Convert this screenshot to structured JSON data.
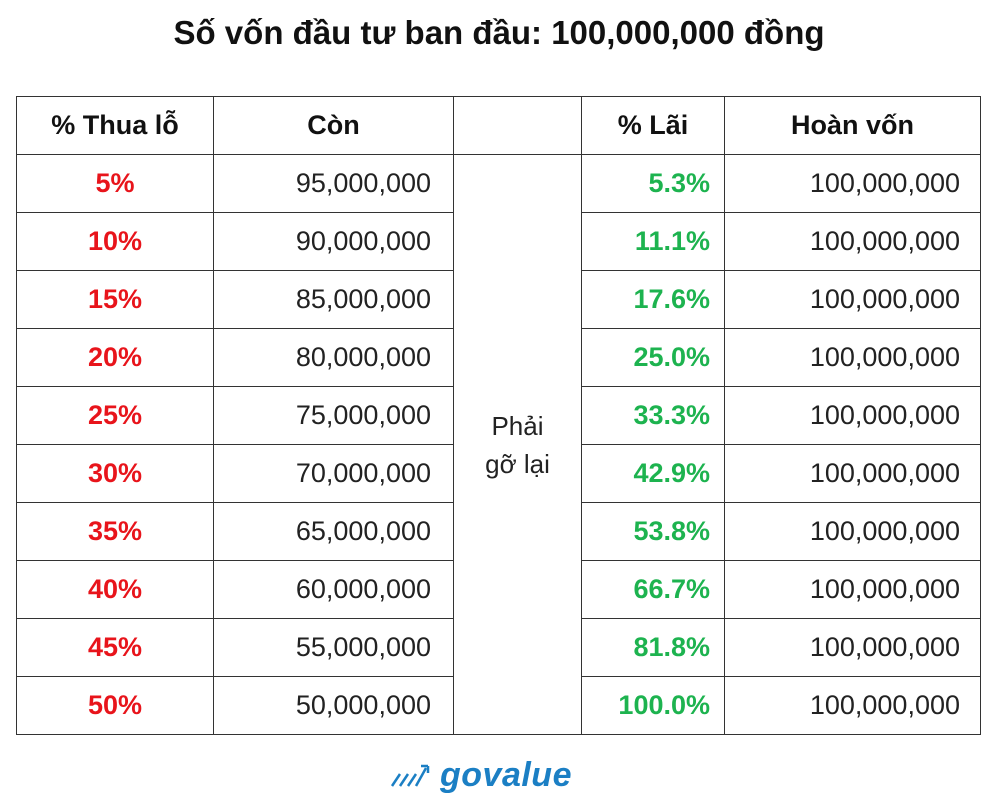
{
  "header": {
    "title": "Số vốn đầu tư ban đầu: 100,000,000 đồng"
  },
  "table": {
    "columns": [
      "% Thua lỗ",
      "Còn",
      "% Lãi",
      "Hoàn vốn"
    ],
    "merged_note": [
      "Phải",
      "gỡ lại"
    ],
    "rows": [
      [
        "5%",
        "95,000,000",
        "5.3%",
        "100,000,000"
      ],
      [
        "10%",
        "90,000,000",
        "11.1%",
        "100,000,000"
      ],
      [
        "15%",
        "85,000,000",
        "17.6%",
        "100,000,000"
      ],
      [
        "20%",
        "80,000,000",
        "25.0%",
        "100,000,000"
      ],
      [
        "25%",
        "75,000,000",
        "33.3%",
        "100,000,000"
      ],
      [
        "30%",
        "70,000,000",
        "42.9%",
        "100,000,000"
      ],
      [
        "35%",
        "65,000,000",
        "53.8%",
        "100,000,000"
      ],
      [
        "40%",
        "60,000,000",
        "66.7%",
        "100,000,000"
      ],
      [
        "45%",
        "55,000,000",
        "81.8%",
        "100,000,000"
      ],
      [
        "50%",
        "50,000,000",
        "100.0%",
        "100,000,000"
      ]
    ]
  },
  "footer": {
    "logo": "govalue"
  }
}
